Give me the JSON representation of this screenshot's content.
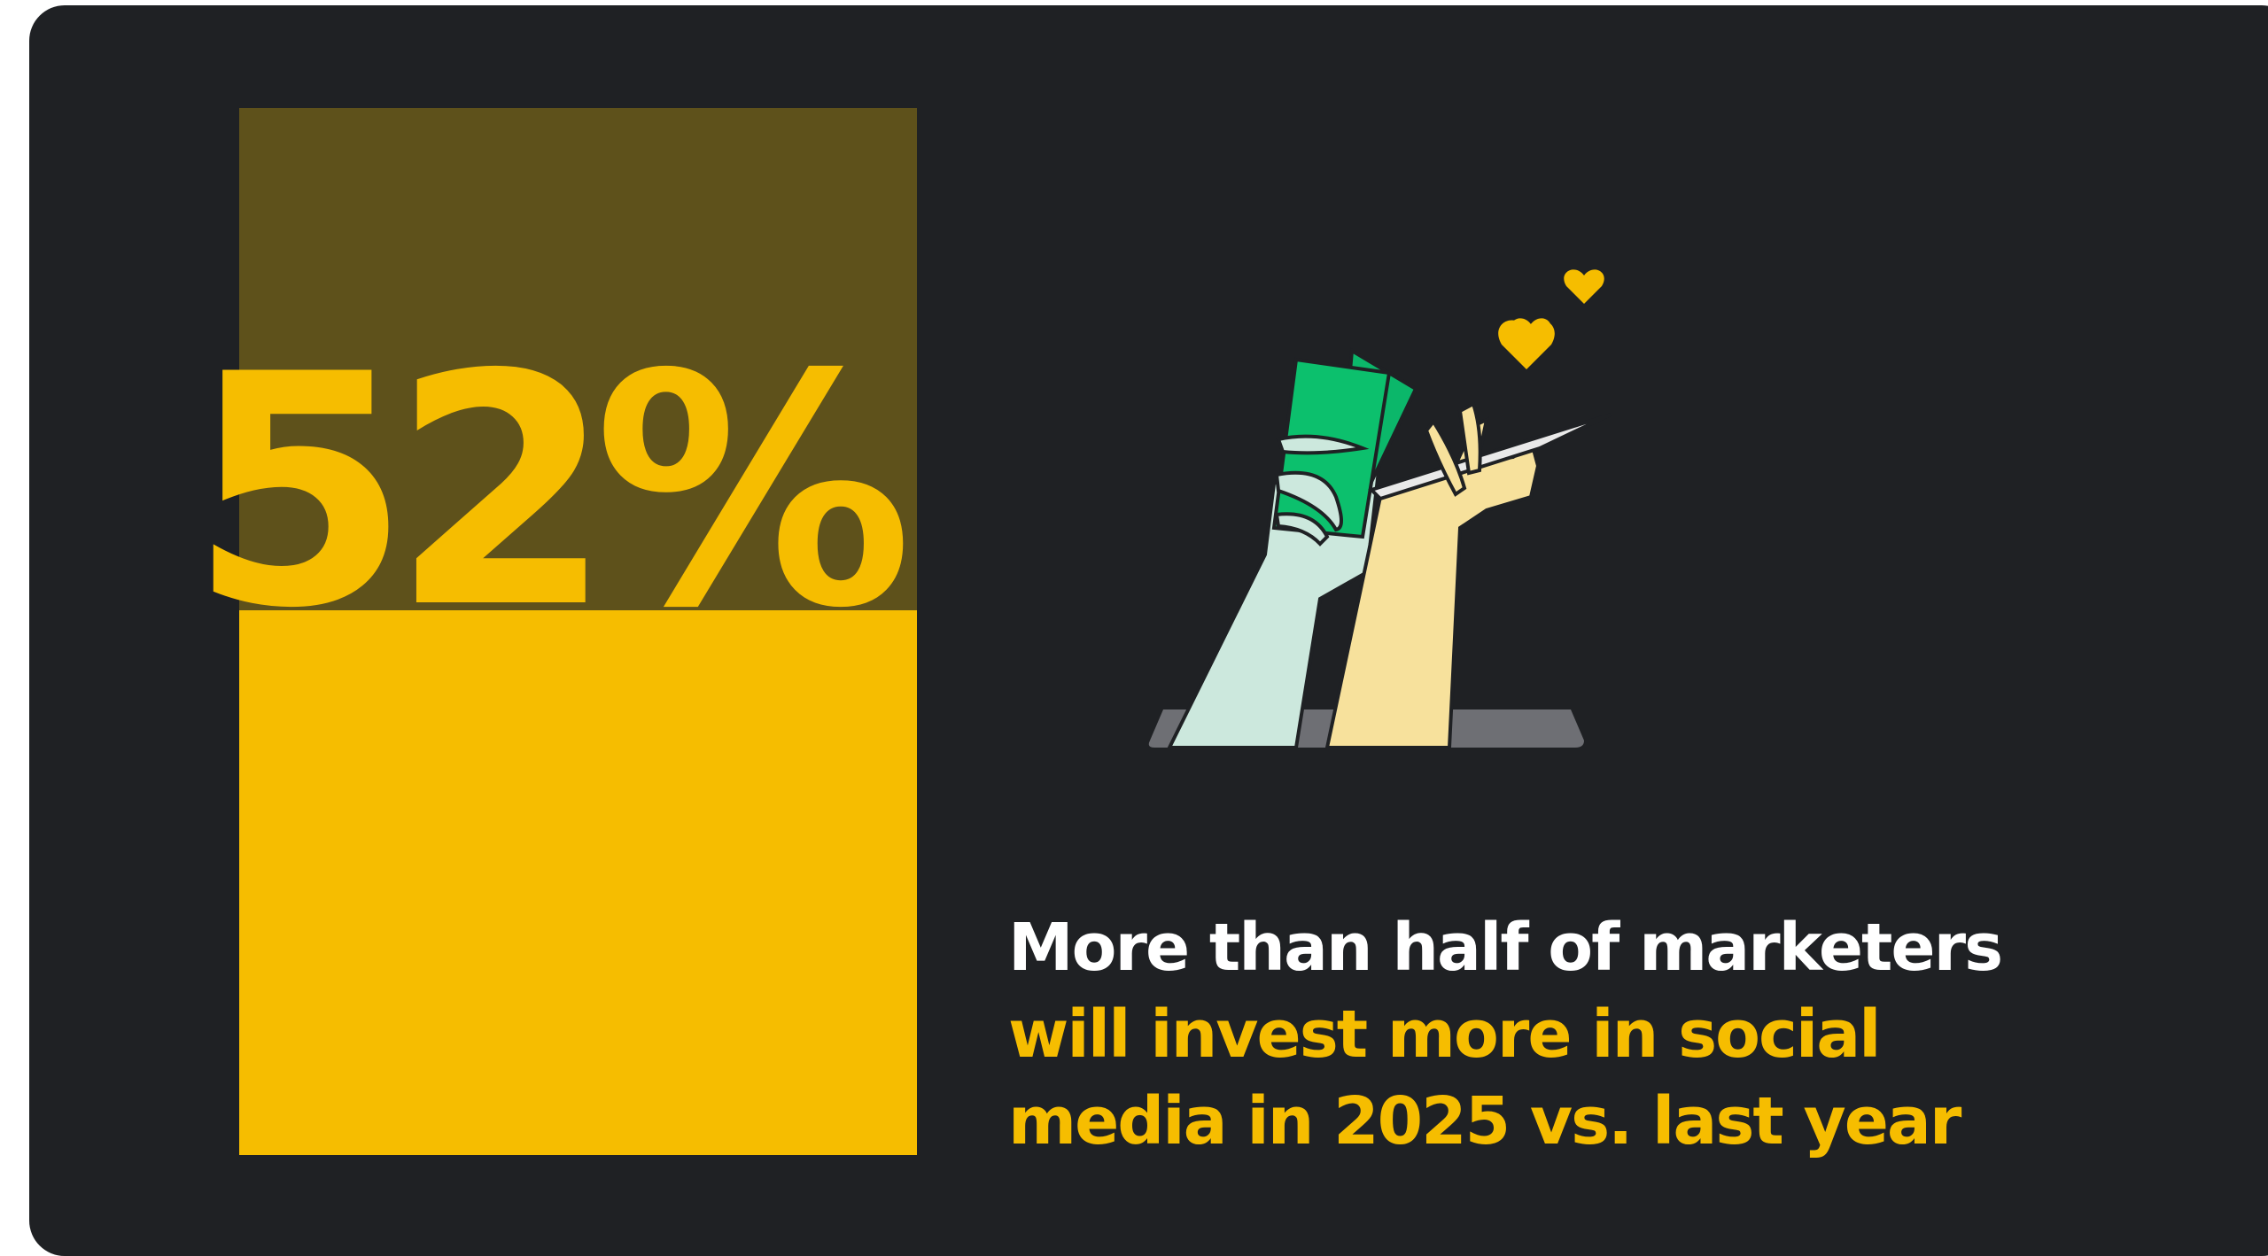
{
  "chart_data": {
    "type": "bar",
    "categories": [
      ""
    ],
    "values": [
      52
    ],
    "ylim": [
      0,
      100
    ],
    "value_label": "52%",
    "text_lines": [
      "More than half of marketers",
      "will invest more in social",
      "media in 2025 vs. last year"
    ]
  },
  "colors": {
    "background": "#1f2124",
    "bar_fill": "#f6bd00",
    "bar_track": "#5e511b",
    "headline_primary": "#ffffff",
    "headline_accent": "#f6bd00"
  },
  "illustration": {
    "icons": [
      "hand-holding-cash-icon",
      "hand-holding-pen-icon",
      "heart-icon"
    ]
  }
}
